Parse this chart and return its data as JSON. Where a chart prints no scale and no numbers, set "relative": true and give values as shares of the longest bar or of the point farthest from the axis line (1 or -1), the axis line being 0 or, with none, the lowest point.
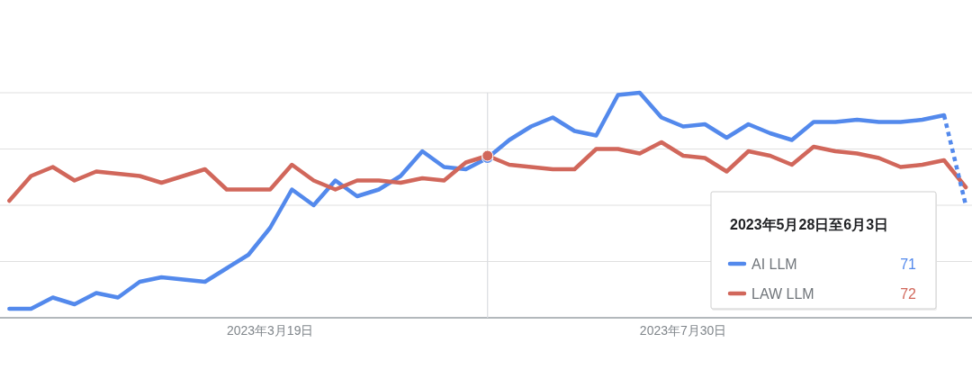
{
  "chart_data": {
    "type": "line",
    "relative": true,
    "x": [
      "2022-12-25",
      "2023-01-01",
      "2023-01-08",
      "2023-01-15",
      "2023-01-22",
      "2023-01-29",
      "2023-02-05",
      "2023-02-12",
      "2023-02-19",
      "2023-02-26",
      "2023-03-05",
      "2023-03-12",
      "2023-03-19",
      "2023-03-26",
      "2023-04-02",
      "2023-04-09",
      "2023-04-16",
      "2023-04-23",
      "2023-04-30",
      "2023-05-07",
      "2023-05-14",
      "2023-05-21",
      "2023-05-28",
      "2023-06-04",
      "2023-06-11",
      "2023-06-18",
      "2023-06-25",
      "2023-07-02",
      "2023-07-09",
      "2023-07-16",
      "2023-07-23",
      "2023-07-30",
      "2023-08-06",
      "2023-08-13",
      "2023-08-20",
      "2023-08-27",
      "2023-09-03",
      "2023-09-10",
      "2023-09-17",
      "2023-09-24",
      "2023-10-01",
      "2023-10-08",
      "2023-10-15",
      "2023-10-22",
      "2023-10-29"
    ],
    "series": [
      {
        "name": "AI LLM",
        "color": "#5389ec",
        "values": [
          0.04,
          0.04,
          0.09,
          0.06,
          0.11,
          0.09,
          0.16,
          0.18,
          0.17,
          0.16,
          0.22,
          0.28,
          0.4,
          0.57,
          0.5,
          0.61,
          0.54,
          0.57,
          0.63,
          0.74,
          0.67,
          0.66,
          0.71,
          0.79,
          0.85,
          0.89,
          0.83,
          0.81,
          0.99,
          1,
          0.89,
          0.85,
          0.86,
          0.8,
          0.86,
          0.82,
          0.79,
          0.87,
          0.87,
          0.88,
          0.87,
          0.87,
          0.88,
          0.9,
          null
        ]
      },
      {
        "name": "LAW LLM",
        "color": "#d1675b",
        "values": [
          0.52,
          0.63,
          0.67,
          0.61,
          0.65,
          0.64,
          0.63,
          0.6,
          0.63,
          0.66,
          0.57,
          0.57,
          0.57,
          0.68,
          0.61,
          0.57,
          0.61,
          0.61,
          0.6,
          0.62,
          0.61,
          0.69,
          0.72,
          0.68,
          0.67,
          0.66,
          0.66,
          0.75,
          0.75,
          0.73,
          0.78,
          0.72,
          0.71,
          0.65,
          0.74,
          0.72,
          0.68,
          0.76,
          0.74,
          0.73,
          0.71,
          0.67,
          0.68,
          0.7,
          0.58
        ]
      },
      {
        "color": "#5389ec",
        "x": [
          "2023-10-22",
          "2023-10-29"
        ],
        "values": [
          0.9,
          0.5
        ],
        "line_style": "dotted"
      }
    ],
    "xlim": [
      "2022-12-22",
      "2023-10-31"
    ],
    "xticks": [
      {
        "value": "2023-03-19",
        "label": "2023年3月19日"
      },
      {
        "value": "2023-07-30",
        "label": "2023年7月30日"
      }
    ],
    "grid": "y",
    "tick_labels": "x",
    "legend": "bottom right",
    "legend_title": "2023年5月28日至6月3日",
    "annotations": [
      "71",
      "72"
    ],
    "ref_lines": [
      {
        "axis": "x",
        "value": "2023-05-28",
        "color": "#dadce0"
      }
    ]
  }
}
